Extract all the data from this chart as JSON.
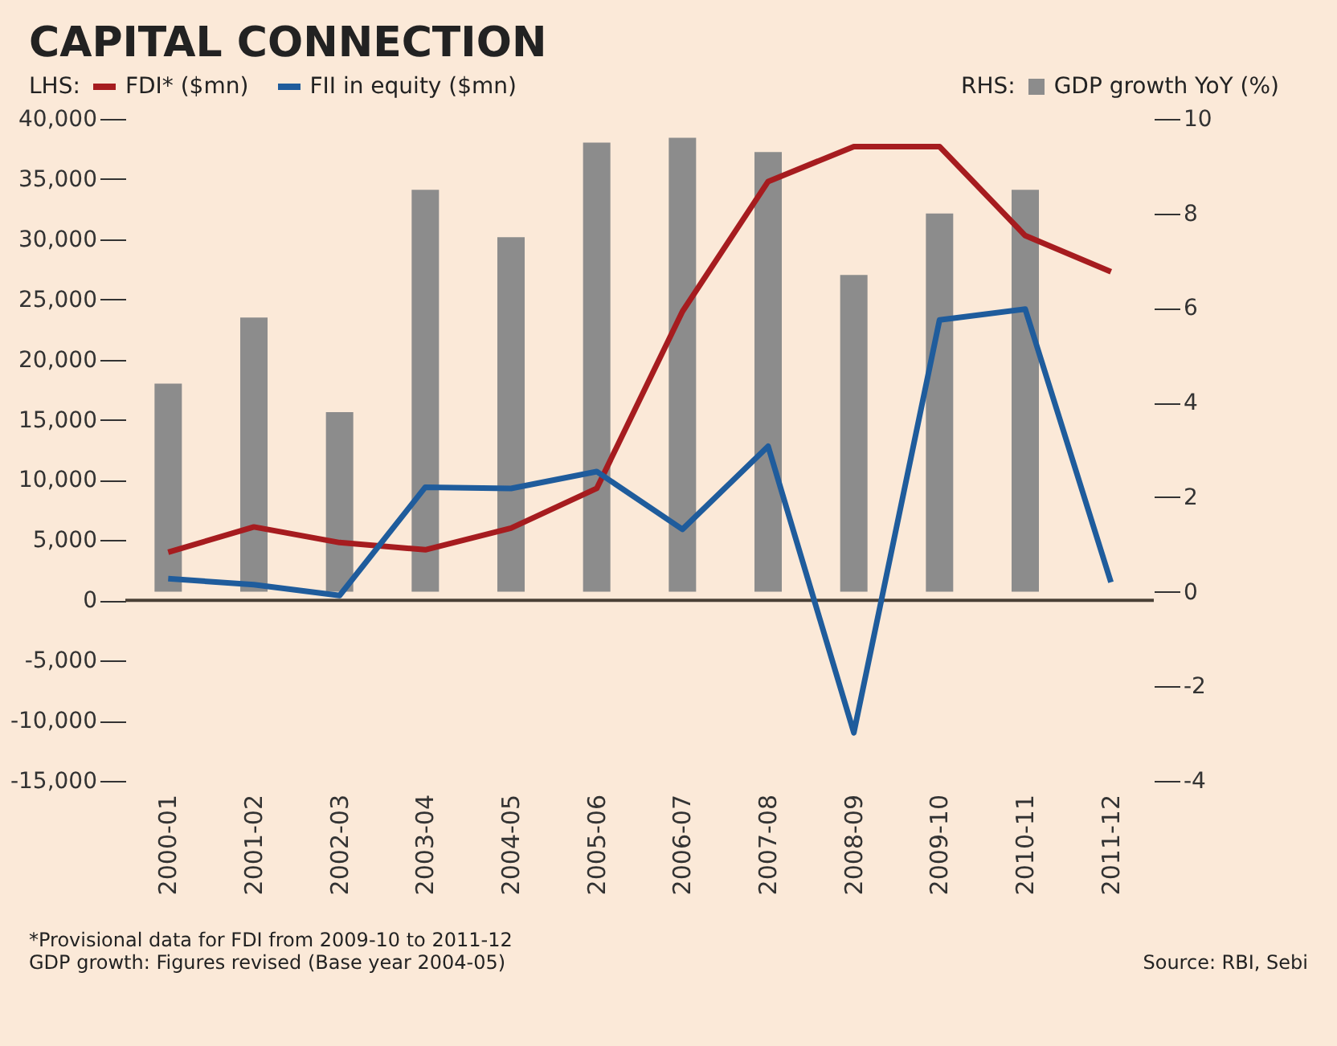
{
  "chart_data": {
    "type": "line",
    "title": "CAPITAL CONNECTION",
    "categories": [
      "2000-01",
      "2001-02",
      "2002-03",
      "2003-04",
      "2004-05",
      "2005-06",
      "2006-07",
      "2007-08",
      "2008-09",
      "2009-10",
      "2010-11",
      "2011-12"
    ],
    "series": [
      {
        "name": "GDP growth YoY (%)",
        "type": "bar",
        "axis": "y2",
        "color": "#8c8c8c",
        "values": [
          4.4,
          5.8,
          3.8,
          8.5,
          7.5,
          9.5,
          9.6,
          9.3,
          6.7,
          8.0,
          8.5,
          null
        ]
      },
      {
        "name": "FDI* ($mn)",
        "color": "#a61c1f",
        "values": [
          4000,
          6100,
          4800,
          4200,
          6000,
          9300,
          24000,
          34800,
          37700,
          37700,
          30300,
          27300
        ]
      },
      {
        "name": "FII in equity ($mn)",
        "color": "#1f5c9c",
        "values": [
          1800,
          1300,
          400,
          9400,
          9300,
          10700,
          5900,
          12800,
          -11000,
          23300,
          24200,
          1500
        ]
      }
    ],
    "ylim": [
      -15000,
      40000
    ],
    "yticks": [
      {
        "value": -15000,
        "label": "-15,000"
      },
      {
        "value": -10000,
        "label": "-10,000"
      },
      {
        "value": -5000,
        "label": "-5,000"
      },
      0,
      {
        "value": 5000,
        "label": "5,000"
      },
      {
        "value": 10000,
        "label": "10,000"
      },
      {
        "value": 15000,
        "label": "15,000"
      },
      {
        "value": 20000,
        "label": "20,000"
      },
      {
        "value": 25000,
        "label": "25,000"
      },
      {
        "value": 30000,
        "label": "30,000"
      },
      {
        "value": 35000,
        "label": "35,000"
      },
      {
        "value": 40000,
        "label": "40,000"
      }
    ],
    "y2lim": [
      -4,
      10
    ],
    "y2ticks": [
      -4,
      -2,
      0,
      2,
      4,
      6,
      8,
      10
    ],
    "ref_lines": [
      {
        "axis": "y",
        "value": 0,
        "color": "#4a4036"
      }
    ],
    "legend": "top",
    "annotations": [
      "LHS:",
      "RHS:",
      "*Provisional data for FDI from 2009-10 to 2011-12",
      "GDP growth: Figures revised (Base year 2004-05)",
      "Source: RBI, Sebi"
    ]
  }
}
